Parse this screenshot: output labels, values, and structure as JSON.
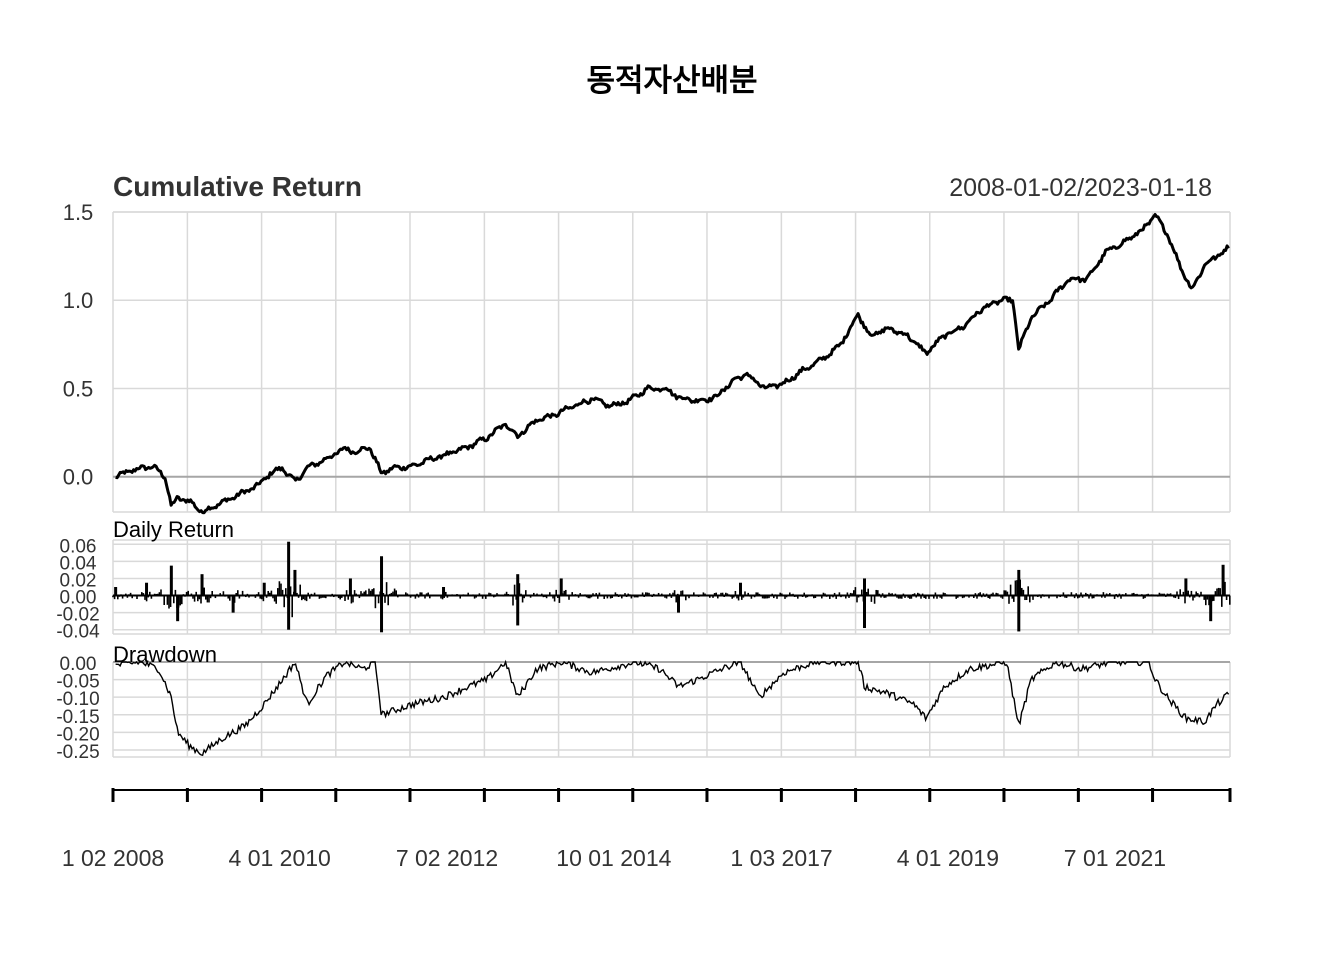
{
  "title": "동적자산배분",
  "date_range": "2008-01-02/2023-01-18",
  "chart_data": [
    {
      "type": "line",
      "title": "Cumulative Return",
      "ylim": [
        -0.2,
        1.5
      ],
      "yticks": [
        "0.0",
        "0.5",
        "1.0",
        "1.5"
      ],
      "grid": true,
      "x": [
        "2008-01",
        "2008-04",
        "2008-07",
        "2008-09",
        "2008-10",
        "2008-11",
        "2009-01",
        "2009-03",
        "2009-06",
        "2009-09",
        "2009-12",
        "2010-02",
        "2010-04",
        "2010-06",
        "2010-08",
        "2010-11",
        "2011-02",
        "2011-04",
        "2011-06",
        "2011-08",
        "2011-10",
        "2012-01",
        "2012-04",
        "2012-07",
        "2012-10",
        "2013-01",
        "2013-04",
        "2013-06",
        "2013-09",
        "2013-12",
        "2014-03",
        "2014-06",
        "2014-09",
        "2014-12",
        "2015-03",
        "2015-06",
        "2015-08",
        "2015-11",
        "2016-02",
        "2016-05",
        "2016-07",
        "2016-10",
        "2017-01",
        "2017-04",
        "2017-07",
        "2017-10",
        "2018-01",
        "2018-03",
        "2018-06",
        "2018-09",
        "2018-12",
        "2019-03",
        "2019-06",
        "2019-09",
        "2019-12",
        "2020-02",
        "2020-03",
        "2020-05",
        "2020-08",
        "2020-11",
        "2021-02",
        "2021-05",
        "2021-08",
        "2021-11",
        "2022-01",
        "2022-03",
        "2022-05",
        "2022-07",
        "2022-09",
        "2022-11",
        "2023-01"
      ],
      "series": [
        {
          "values": [
            0.0,
            0.04,
            0.06,
            0.0,
            -0.17,
            -0.12,
            -0.14,
            -0.2,
            -0.15,
            -0.1,
            -0.05,
            0.02,
            0.05,
            -0.03,
            0.05,
            0.1,
            0.16,
            0.14,
            0.17,
            0.02,
            0.05,
            0.06,
            0.1,
            0.13,
            0.17,
            0.22,
            0.3,
            0.23,
            0.32,
            0.35,
            0.4,
            0.44,
            0.4,
            0.43,
            0.5,
            0.5,
            0.45,
            0.43,
            0.45,
            0.55,
            0.58,
            0.5,
            0.53,
            0.6,
            0.66,
            0.74,
            0.92,
            0.8,
            0.84,
            0.8,
            0.7,
            0.8,
            0.85,
            0.95,
            1.0,
            1.0,
            0.72,
            0.9,
            1.0,
            1.12,
            1.12,
            1.27,
            1.33,
            1.4,
            1.48,
            1.38,
            1.2,
            1.06,
            1.2,
            1.25,
            1.3
          ]
        }
      ]
    },
    {
      "type": "bar",
      "title": "Daily Return",
      "ylim": [
        -0.045,
        0.065
      ],
      "yticks": [
        "-0.04",
        "-0.02",
        "0.00",
        "0.02",
        "0.04",
        "0.06"
      ],
      "grid": true,
      "x": [
        "2008-01",
        "2008-06",
        "2008-10",
        "2008-11",
        "2009-03",
        "2009-08",
        "2010-01",
        "2010-05",
        "2010-05",
        "2010-06",
        "2011-03",
        "2011-08",
        "2011-08",
        "2012-06",
        "2013-06",
        "2013-06",
        "2014-01",
        "2015-08",
        "2016-06",
        "2018-02",
        "2018-02",
        "2020-03",
        "2020-03",
        "2022-06",
        "2022-10",
        "2022-12"
      ],
      "series": [
        {
          "values": [
            0.01,
            0.015,
            0.035,
            -0.03,
            0.025,
            -0.02,
            0.015,
            0.063,
            -0.04,
            0.03,
            0.02,
            0.046,
            -0.043,
            0.01,
            0.025,
            -0.035,
            0.02,
            -0.02,
            0.015,
            0.02,
            -0.038,
            0.03,
            -0.042,
            0.02,
            -0.03,
            0.036
          ]
        }
      ]
    },
    {
      "type": "area",
      "title": "Drawdown",
      "ylim": [
        -0.27,
        0.0
      ],
      "yticks": [
        "-0.25",
        "-0.20",
        "-0.15",
        "-0.10",
        "-0.05",
        "0.00"
      ],
      "grid": true,
      "x": [
        "2008-01",
        "2008-05",
        "2008-08",
        "2008-10",
        "2008-11",
        "2009-01",
        "2009-03",
        "2009-06",
        "2009-10",
        "2010-01",
        "2010-04",
        "2010-06",
        "2010-08",
        "2010-11",
        "2011-02",
        "2011-05",
        "2011-07",
        "2011-08",
        "2012-01",
        "2012-06",
        "2012-10",
        "2013-01",
        "2013-04",
        "2013-06",
        "2013-09",
        "2014-01",
        "2014-06",
        "2015-01",
        "2015-05",
        "2015-08",
        "2015-11",
        "2016-03",
        "2016-06",
        "2016-09",
        "2017-01",
        "2017-06",
        "2018-01",
        "2018-02",
        "2018-06",
        "2018-10",
        "2018-12",
        "2019-03",
        "2019-07",
        "2020-01",
        "2020-03",
        "2020-05",
        "2020-09",
        "2021-01",
        "2021-06",
        "2021-12",
        "2022-01",
        "2022-03",
        "2022-06",
        "2022-09",
        "2022-11",
        "2023-01"
      ],
      "series": [
        {
          "values": [
            -0.01,
            0.0,
            -0.02,
            -0.1,
            -0.2,
            -0.24,
            -0.26,
            -0.22,
            -0.18,
            -0.12,
            -0.05,
            0.0,
            -0.12,
            -0.04,
            0.0,
            -0.02,
            0.0,
            -0.15,
            -0.12,
            -0.1,
            -0.07,
            -0.05,
            0.0,
            -0.1,
            -0.02,
            0.0,
            -0.03,
            0.0,
            -0.02,
            -0.07,
            -0.05,
            -0.02,
            0.0,
            -0.1,
            -0.03,
            0.0,
            0.0,
            -0.07,
            -0.09,
            -0.12,
            -0.16,
            -0.07,
            -0.02,
            0.0,
            -0.18,
            -0.05,
            0.0,
            -0.02,
            0.0,
            0.0,
            -0.05,
            -0.1,
            -0.16,
            -0.17,
            -0.12,
            -0.09
          ]
        }
      ]
    }
  ],
  "x_axis": {
    "tick_labels": [
      "1 02 2008",
      "4 01 2010",
      "7 02 2012",
      "10 01 2014",
      "1 03 2017",
      "4 01 2019",
      "7 01 2021"
    ],
    "tick_dates": [
      "2008-01-02",
      "2010-04-01",
      "2012-07-02",
      "2014-10-01",
      "2017-01-03",
      "2019-04-01",
      "2021-07-01"
    ],
    "range": [
      "2008-01-02",
      "2023-01-18"
    ]
  }
}
